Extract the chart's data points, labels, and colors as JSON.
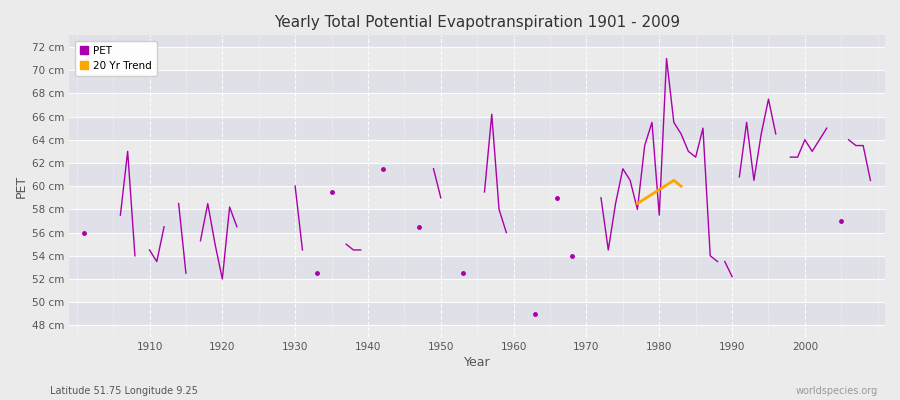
{
  "title": "Yearly Total Potential Evapotranspiration 1901 - 2009",
  "xlabel": "Year",
  "ylabel": "PET",
  "subtitle": "Latitude 51.75 Longitude 9.25",
  "watermark": "worldspecies.org",
  "pet_color": "#AA00AA",
  "trend_color": "#FFA500",
  "bg_color": "#F0F0F0",
  "band_dark": "#E2E2E8",
  "band_light": "#EBEBEB",
  "ylim": [
    47,
    73
  ],
  "xlim": [
    1899,
    2011
  ],
  "ytick_labels": [
    "48 cm",
    "50 cm",
    "52 cm",
    "54 cm",
    "56 cm",
    "58 cm",
    "60 cm",
    "62 cm",
    "64 cm",
    "66 cm",
    "68 cm",
    "70 cm",
    "72 cm"
  ],
  "ytick_values": [
    48,
    50,
    52,
    54,
    56,
    58,
    60,
    62,
    64,
    66,
    68,
    70,
    72
  ],
  "segments": [
    [
      [
        1901,
        56.0
      ]
    ],
    [
      [
        1906,
        57.5
      ],
      [
        1907,
        63.0
      ],
      [
        1908,
        54.0
      ]
    ],
    [
      [
        1910,
        54.5
      ],
      [
        1911,
        53.5
      ],
      [
        1912,
        56.5
      ]
    ],
    [
      [
        1914,
        58.5
      ],
      [
        1915,
        52.5
      ]
    ],
    [
      [
        1917,
        55.3
      ],
      [
        1918,
        58.5
      ],
      [
        1919,
        55.0
      ],
      [
        1920,
        52.0
      ],
      [
        1921,
        58.2
      ],
      [
        1922,
        56.5
      ]
    ],
    [
      [
        1930,
        60.0
      ],
      [
        1931,
        54.5
      ]
    ],
    [
      [
        1933,
        52.5
      ]
    ],
    [
      [
        1935,
        59.5
      ]
    ],
    [
      [
        1937,
        55.0
      ],
      [
        1938,
        54.5
      ],
      [
        1939,
        54.5
      ]
    ],
    [
      [
        1942,
        61.5
      ]
    ],
    [
      [
        1947,
        56.5
      ]
    ],
    [
      [
        1949,
        61.5
      ],
      [
        1950,
        59.0
      ]
    ],
    [
      [
        1953,
        52.5
      ]
    ],
    [
      [
        1956,
        59.5
      ],
      [
        1957,
        66.2
      ],
      [
        1958,
        58.0
      ],
      [
        1959,
        56.0
      ]
    ],
    [
      [
        1963,
        49.0
      ]
    ],
    [
      [
        1966,
        59.0
      ]
    ],
    [
      [
        1968,
        54.0
      ]
    ],
    [
      [
        1972,
        59.0
      ],
      [
        1973,
        54.5
      ],
      [
        1974,
        58.5
      ],
      [
        1975,
        61.5
      ],
      [
        1976,
        60.5
      ],
      [
        1977,
        58.0
      ],
      [
        1978,
        63.5
      ],
      [
        1979,
        65.5
      ],
      [
        1980,
        57.5
      ],
      [
        1981,
        71.0
      ],
      [
        1982,
        65.5
      ],
      [
        1983,
        64.5
      ],
      [
        1984,
        63.0
      ],
      [
        1985,
        62.5
      ],
      [
        1986,
        65.0
      ],
      [
        1987,
        54.0
      ],
      [
        1988,
        53.5
      ]
    ],
    [
      [
        1989,
        53.5
      ],
      [
        1990,
        52.2
      ]
    ],
    [
      [
        1991,
        60.8
      ],
      [
        1992,
        65.5
      ],
      [
        1993,
        60.5
      ],
      [
        1994,
        64.5
      ],
      [
        1995,
        67.5
      ],
      [
        1996,
        64.5
      ]
    ],
    [
      [
        1998,
        62.5
      ],
      [
        1999,
        62.5
      ],
      [
        2000,
        64.0
      ],
      [
        2001,
        63.0
      ],
      [
        2002,
        64.0
      ],
      [
        2003,
        65.0
      ]
    ],
    [
      [
        2005,
        57.0
      ]
    ],
    [
      [
        2006,
        64.0
      ],
      [
        2007,
        63.5
      ],
      [
        2008,
        63.5
      ],
      [
        2009,
        60.5
      ]
    ]
  ],
  "trend_x": [
    1977,
    1978,
    1979,
    1980,
    1981,
    1982,
    1983
  ],
  "trend_y": [
    58.5,
    58.9,
    59.3,
    59.7,
    60.1,
    60.5,
    60.0
  ]
}
